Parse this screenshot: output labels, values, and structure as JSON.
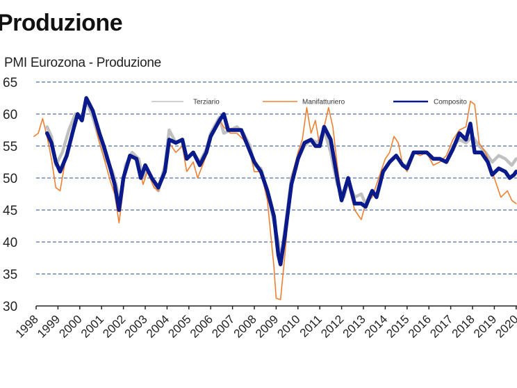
{
  "page": {
    "title": "Produzione"
  },
  "chart_data": {
    "type": "line",
    "title": "PMI Eurozona - Produzione",
    "xlabel": "",
    "ylabel": "",
    "ylim": [
      30,
      65
    ],
    "yticks": [
      30,
      35,
      40,
      45,
      50,
      55,
      60,
      65
    ],
    "xticks": [
      "1998",
      "1999",
      "2000",
      "2001",
      "2002",
      "2003",
      "2004",
      "2005",
      "2006",
      "2007",
      "2008",
      "2009",
      "2010",
      "2011",
      "2012",
      "2013",
      "2014",
      "2015",
      "2016",
      "2017",
      "2018",
      "2019",
      "2020"
    ],
    "grid": "horizontal dashed",
    "legend_position": "top inside",
    "series": [
      {
        "name": "Terziario",
        "color": "#c0c0c0",
        "points": [
          [
            1998.5,
            58
          ],
          [
            1998.7,
            56.5
          ],
          [
            1998.9,
            52
          ],
          [
            1999.2,
            54
          ],
          [
            1999.5,
            57.5
          ],
          [
            1999.8,
            60
          ],
          [
            2000.1,
            59.5
          ],
          [
            2000.3,
            62
          ],
          [
            2000.6,
            59.5
          ],
          [
            2000.9,
            56
          ],
          [
            2001.2,
            53
          ],
          [
            2001.5,
            51
          ],
          [
            2001.7,
            48.5
          ],
          [
            2001.8,
            45.5
          ],
          [
            2002.1,
            52
          ],
          [
            2002.4,
            54
          ],
          [
            2002.7,
            53
          ],
          [
            2002.9,
            50
          ],
          [
            2003.1,
            51.5
          ],
          [
            2003.4,
            49
          ],
          [
            2003.6,
            48
          ],
          [
            2003.9,
            52
          ],
          [
            2004.1,
            57.5
          ],
          [
            2004.4,
            55.5
          ],
          [
            2004.7,
            56
          ],
          [
            2004.9,
            53
          ],
          [
            2005.2,
            54
          ],
          [
            2005.5,
            52.5
          ],
          [
            2005.8,
            54.5
          ],
          [
            2006.0,
            57
          ],
          [
            2006.4,
            59.5
          ],
          [
            2006.6,
            57
          ],
          [
            2006.9,
            57.5
          ],
          [
            2007.2,
            58
          ],
          [
            2007.5,
            57
          ],
          [
            2007.8,
            55
          ],
          [
            2008.0,
            52
          ],
          [
            2008.3,
            51.5
          ],
          [
            2008.6,
            48
          ],
          [
            2008.9,
            43
          ],
          [
            2009.1,
            40
          ],
          [
            2009.2,
            37
          ],
          [
            2009.4,
            42
          ],
          [
            2009.7,
            50
          ],
          [
            2010.0,
            53
          ],
          [
            2010.3,
            55
          ],
          [
            2010.6,
            56
          ],
          [
            2010.9,
            55.5
          ],
          [
            2011.2,
            57.5
          ],
          [
            2011.5,
            54
          ],
          [
            2011.8,
            49
          ],
          [
            2012.1,
            47
          ],
          [
            2012.3,
            49.5
          ],
          [
            2012.6,
            47
          ],
          [
            2012.9,
            47.5
          ],
          [
            2013.1,
            46
          ],
          [
            2013.4,
            48
          ],
          [
            2013.6,
            47
          ],
          [
            2013.9,
            51
          ],
          [
            2014.2,
            52.5
          ],
          [
            2014.5,
            53.5
          ],
          [
            2014.8,
            52
          ],
          [
            2015.0,
            52
          ],
          [
            2015.3,
            54
          ],
          [
            2015.6,
            54
          ],
          [
            2015.9,
            54
          ],
          [
            2016.2,
            53
          ],
          [
            2016.5,
            53
          ],
          [
            2016.8,
            52.5
          ],
          [
            2017.1,
            55
          ],
          [
            2017.4,
            56
          ],
          [
            2017.7,
            55.5
          ],
          [
            2018.0,
            56.5
          ],
          [
            2018.3,
            55
          ],
          [
            2018.6,
            54
          ],
          [
            2018.9,
            52.5
          ],
          [
            2019.2,
            53.5
          ],
          [
            2019.5,
            53
          ],
          [
            2019.8,
            52
          ],
          [
            2020.0,
            53
          ]
        ]
      },
      {
        "name": "Manifatturiero",
        "color": "#f08030",
        "points": [
          [
            1997.9,
            56.5
          ],
          [
            1998.1,
            57
          ],
          [
            1998.3,
            59.3
          ],
          [
            1998.5,
            56.5
          ],
          [
            1998.7,
            53
          ],
          [
            1998.9,
            48.5
          ],
          [
            1999.1,
            48
          ],
          [
            1999.3,
            52
          ],
          [
            1999.6,
            57
          ],
          [
            1999.9,
            60
          ],
          [
            2000.1,
            59
          ],
          [
            2000.3,
            62.5
          ],
          [
            2000.6,
            60
          ],
          [
            2000.9,
            55.5
          ],
          [
            2001.2,
            52
          ],
          [
            2001.4,
            49.5
          ],
          [
            2001.6,
            47.5
          ],
          [
            2001.8,
            43
          ],
          [
            2002.1,
            51
          ],
          [
            2002.4,
            53.5
          ],
          [
            2002.7,
            52
          ],
          [
            2002.9,
            49
          ],
          [
            2003.1,
            51
          ],
          [
            2003.4,
            48.5
          ],
          [
            2003.6,
            48
          ],
          [
            2003.9,
            52
          ],
          [
            2004.1,
            55.5
          ],
          [
            2004.4,
            54
          ],
          [
            2004.7,
            55
          ],
          [
            2004.9,
            51
          ],
          [
            2005.2,
            52.5
          ],
          [
            2005.4,
            50
          ],
          [
            2005.8,
            53.5
          ],
          [
            2006.0,
            56.5
          ],
          [
            2006.4,
            59
          ],
          [
            2006.6,
            58
          ],
          [
            2006.9,
            57
          ],
          [
            2007.2,
            57
          ],
          [
            2007.5,
            56
          ],
          [
            2007.8,
            54
          ],
          [
            2008.0,
            51
          ],
          [
            2008.3,
            51
          ],
          [
            2008.6,
            46.5
          ],
          [
            2008.9,
            36
          ],
          [
            2009.0,
            31.2
          ],
          [
            2009.2,
            31
          ],
          [
            2009.4,
            38
          ],
          [
            2009.7,
            50
          ],
          [
            2010.0,
            54
          ],
          [
            2010.2,
            56
          ],
          [
            2010.4,
            61
          ],
          [
            2010.6,
            57
          ],
          [
            2010.8,
            59
          ],
          [
            2011.0,
            55
          ],
          [
            2011.2,
            58
          ],
          [
            2011.4,
            61
          ],
          [
            2011.6,
            58
          ],
          [
            2011.8,
            52
          ],
          [
            2012.0,
            47
          ],
          [
            2012.3,
            49
          ],
          [
            2012.6,
            45
          ],
          [
            2012.9,
            43.5
          ],
          [
            2013.1,
            46
          ],
          [
            2013.4,
            47
          ],
          [
            2013.7,
            50
          ],
          [
            2014.0,
            53
          ],
          [
            2014.2,
            54
          ],
          [
            2014.4,
            56.5
          ],
          [
            2014.6,
            55.5
          ],
          [
            2014.8,
            52
          ],
          [
            2015.0,
            51
          ],
          [
            2015.3,
            54
          ],
          [
            2015.6,
            53.5
          ],
          [
            2015.9,
            54
          ],
          [
            2016.2,
            52
          ],
          [
            2016.5,
            52.5
          ],
          [
            2016.8,
            53.5
          ],
          [
            2017.1,
            56
          ],
          [
            2017.4,
            57.5
          ],
          [
            2017.7,
            58
          ],
          [
            2017.9,
            62
          ],
          [
            2018.1,
            61.5
          ],
          [
            2018.3,
            55.5
          ],
          [
            2018.6,
            54
          ],
          [
            2018.9,
            51
          ],
          [
            2019.1,
            49
          ],
          [
            2019.3,
            47
          ],
          [
            2019.6,
            48
          ],
          [
            2019.8,
            46.5
          ],
          [
            2020.0,
            46
          ]
        ]
      },
      {
        "name": "Composito",
        "color": "#0a1a8a",
        "points": [
          [
            1998.5,
            57
          ],
          [
            1998.7,
            55.5
          ],
          [
            1998.9,
            52.5
          ],
          [
            1999.1,
            51
          ],
          [
            1999.4,
            53.5
          ],
          [
            1999.7,
            57.5
          ],
          [
            1999.9,
            60
          ],
          [
            2000.1,
            59
          ],
          [
            2000.3,
            62.5
          ],
          [
            2000.6,
            60.5
          ],
          [
            2000.9,
            57
          ],
          [
            2001.1,
            55
          ],
          [
            2001.4,
            51.5
          ],
          [
            2001.6,
            49
          ],
          [
            2001.8,
            45
          ],
          [
            2002.0,
            50
          ],
          [
            2002.3,
            53.5
          ],
          [
            2002.6,
            53
          ],
          [
            2002.8,
            50
          ],
          [
            2003.0,
            52
          ],
          [
            2003.3,
            50
          ],
          [
            2003.6,
            48.5
          ],
          [
            2003.9,
            51
          ],
          [
            2004.1,
            56
          ],
          [
            2004.4,
            55.5
          ],
          [
            2004.7,
            56
          ],
          [
            2004.9,
            53
          ],
          [
            2005.2,
            54
          ],
          [
            2005.5,
            52
          ],
          [
            2005.8,
            54
          ],
          [
            2006.0,
            56.5
          ],
          [
            2006.4,
            59
          ],
          [
            2006.6,
            60
          ],
          [
            2006.8,
            57.5
          ],
          [
            2007.1,
            57.5
          ],
          [
            2007.4,
            57.5
          ],
          [
            2007.7,
            55
          ],
          [
            2008.0,
            52.5
          ],
          [
            2008.3,
            51
          ],
          [
            2008.6,
            48
          ],
          [
            2008.9,
            44
          ],
          [
            2009.1,
            38
          ],
          [
            2009.2,
            36.5
          ],
          [
            2009.4,
            41
          ],
          [
            2009.7,
            49
          ],
          [
            2010.0,
            53
          ],
          [
            2010.3,
            55.5
          ],
          [
            2010.6,
            56
          ],
          [
            2010.8,
            55
          ],
          [
            2011.0,
            55
          ],
          [
            2011.2,
            58
          ],
          [
            2011.5,
            56
          ],
          [
            2011.8,
            50
          ],
          [
            2012.0,
            46.5
          ],
          [
            2012.3,
            50
          ],
          [
            2012.6,
            46
          ],
          [
            2012.9,
            46
          ],
          [
            2013.1,
            45.5
          ],
          [
            2013.4,
            48
          ],
          [
            2013.6,
            47
          ],
          [
            2013.9,
            51
          ],
          [
            2014.2,
            52.5
          ],
          [
            2014.5,
            53.5
          ],
          [
            2014.8,
            52
          ],
          [
            2015.0,
            51.5
          ],
          [
            2015.3,
            54
          ],
          [
            2015.6,
            54
          ],
          [
            2015.9,
            54
          ],
          [
            2016.2,
            53
          ],
          [
            2016.5,
            53
          ],
          [
            2016.8,
            52.5
          ],
          [
            2017.1,
            54.5
          ],
          [
            2017.4,
            57
          ],
          [
            2017.7,
            56
          ],
          [
            2017.9,
            58.5
          ],
          [
            2018.1,
            54
          ],
          [
            2018.4,
            54
          ],
          [
            2018.7,
            52.5
          ],
          [
            2018.9,
            50.5
          ],
          [
            2019.2,
            51.5
          ],
          [
            2019.5,
            51
          ],
          [
            2019.7,
            50
          ],
          [
            2019.9,
            50.5
          ],
          [
            2020.0,
            51
          ]
        ]
      }
    ]
  }
}
